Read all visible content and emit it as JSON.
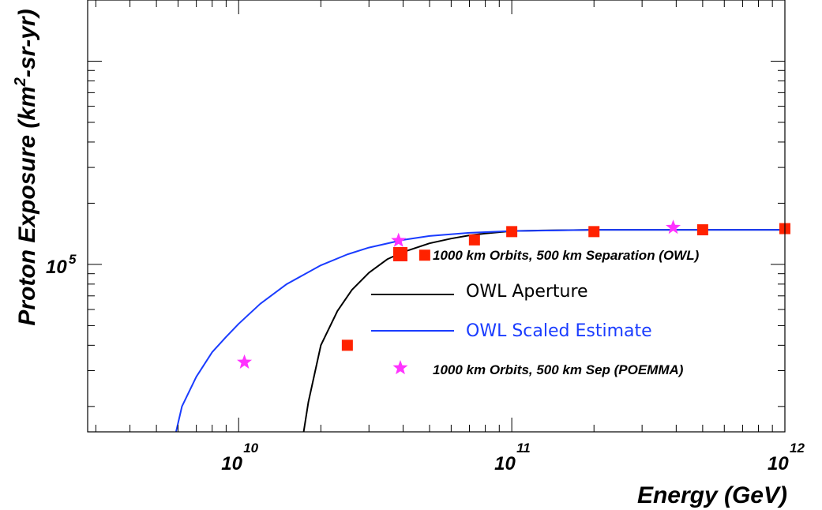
{
  "chart_data": {
    "type": "scatter",
    "xscale": "log",
    "yscale": "log",
    "xlim": [
      2800000000.0,
      1000000000000.0
    ],
    "ylim": [
      15000,
      2000000
    ],
    "xlabel": "Energy (GeV)",
    "ylabel": "Proton Exposure (km²-sr-yr)",
    "ylabel_parts": {
      "pre": "Proton Exposure (km",
      "sup": "2",
      "post": "-sr-yr)"
    },
    "grid": false,
    "legend_position": "center-right",
    "x_ticks": [
      {
        "value": 10000000000.0,
        "base": "10",
        "exp": "10"
      },
      {
        "value": 100000000000.0,
        "base": "10",
        "exp": "11"
      },
      {
        "value": 1000000000000.0,
        "base": "10",
        "exp": "12"
      }
    ],
    "y_ticks": [
      {
        "value": 100000,
        "base": "10",
        "exp": "5"
      }
    ],
    "series": [
      {
        "name": "1000 km Orbits, 500 km Separation (OWL)",
        "kind": "marker",
        "marker": "square",
        "color": "#ff2200",
        "x": [
          25000000000.0,
          48000000000.0,
          73000000000.0,
          100000000000.0,
          200000000000.0,
          500000000000.0,
          1000000000000.0
        ],
        "y": [
          40000,
          111000,
          132000,
          145000,
          145000,
          148000,
          150000
        ]
      },
      {
        "name": "OWL Aperture",
        "kind": "line",
        "color": "#000000",
        "x": [
          17300000000.0,
          18000000000.0,
          20000000000.0,
          23000000000.0,
          26000000000.0,
          30000000000.0,
          35000000000.0,
          40000000000.0,
          50000000000.0,
          60000000000.0,
          70000000000.0,
          80000000000.0,
          100000000000.0,
          130000000000.0,
          200000000000.0,
          500000000000.0,
          1000000000000.0
        ],
        "y": [
          15000,
          21000,
          40000,
          59000,
          75000,
          91000,
          106000,
          115000,
          127000,
          134000,
          139000,
          142000,
          146000,
          147000,
          148000,
          148000,
          148000
        ]
      },
      {
        "name": "OWL Scaled Estimate",
        "kind": "line",
        "color": "#1a3cff",
        "x": [
          5900000000.0,
          6200000000.0,
          7000000000.0,
          8000000000.0,
          9000000000.0,
          10000000000.0,
          12000000000.0,
          15000000000.0,
          20000000000.0,
          25000000000.0,
          30000000000.0,
          40000000000.0,
          50000000000.0,
          70000000000.0,
          100000000000.0,
          200000000000.0,
          500000000000.0,
          1000000000000.0
        ],
        "y": [
          15000,
          20000,
          28000,
          37000,
          44000,
          51000,
          64000,
          80000,
          99000,
          112000,
          121000,
          132000,
          138000,
          143000,
          146000,
          148000,
          148000,
          148000
        ]
      },
      {
        "name": "1000 km Orbits, 500 km Sep (POEMMA)",
        "kind": "marker",
        "marker": "star",
        "color": "#ff33ff",
        "x": [
          10500000000.0,
          38500000000.0,
          390000000000.0
        ],
        "y": [
          33000,
          131000,
          152000
        ]
      }
    ]
  }
}
